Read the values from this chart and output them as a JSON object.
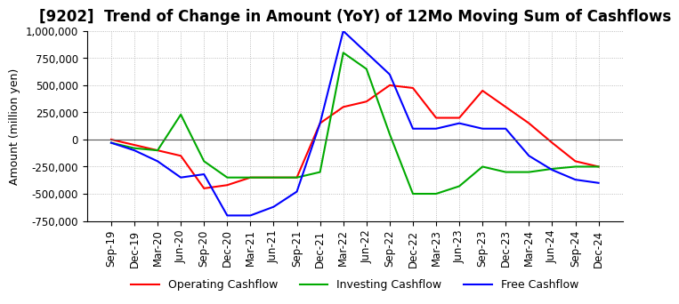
{
  "title": "[9202]  Trend of Change in Amount (YoY) of 12Mo Moving Sum of Cashflows",
  "ylabel": "Amount (million yen)",
  "x_labels": [
    "Sep-19",
    "Dec-19",
    "Mar-20",
    "Jun-20",
    "Sep-20",
    "Dec-20",
    "Mar-21",
    "Jun-21",
    "Sep-21",
    "Dec-21",
    "Mar-22",
    "Jun-22",
    "Sep-22",
    "Dec-22",
    "Mar-23",
    "Jun-23",
    "Sep-23",
    "Dec-23",
    "Mar-24",
    "Jun-24",
    "Sep-24",
    "Dec-24"
  ],
  "operating": [
    0,
    -50000,
    -100000,
    -150000,
    -450000,
    -420000,
    -350000,
    -350000,
    -350000,
    150000,
    300000,
    350000,
    500000,
    475000,
    200000,
    200000,
    450000,
    300000,
    150000,
    -30000,
    -200000,
    -250000
  ],
  "investing": [
    -30000,
    -80000,
    -100000,
    230000,
    -200000,
    -350000,
    -350000,
    -350000,
    -350000,
    -300000,
    800000,
    650000,
    50000,
    -500000,
    -500000,
    -430000,
    -250000,
    -300000,
    -300000,
    -270000,
    -250000,
    -250000
  ],
  "free": [
    -30000,
    -100000,
    -200000,
    -350000,
    -320000,
    -700000,
    -700000,
    -620000,
    -480000,
    150000,
    1000000,
    800000,
    600000,
    100000,
    100000,
    150000,
    100000,
    100000,
    -150000,
    -280000,
    -370000,
    -400000
  ],
  "operating_color": "#FF0000",
  "investing_color": "#00AA00",
  "free_color": "#0000FF",
  "ylim": [
    -750000,
    1000000
  ],
  "yticks": [
    -750000,
    -500000,
    -250000,
    0,
    250000,
    500000,
    750000,
    1000000
  ],
  "background_color": "#FFFFFF",
  "grid_color": "#AAAAAA",
  "title_fontsize": 12,
  "label_fontsize": 9,
  "tick_fontsize": 8.5
}
